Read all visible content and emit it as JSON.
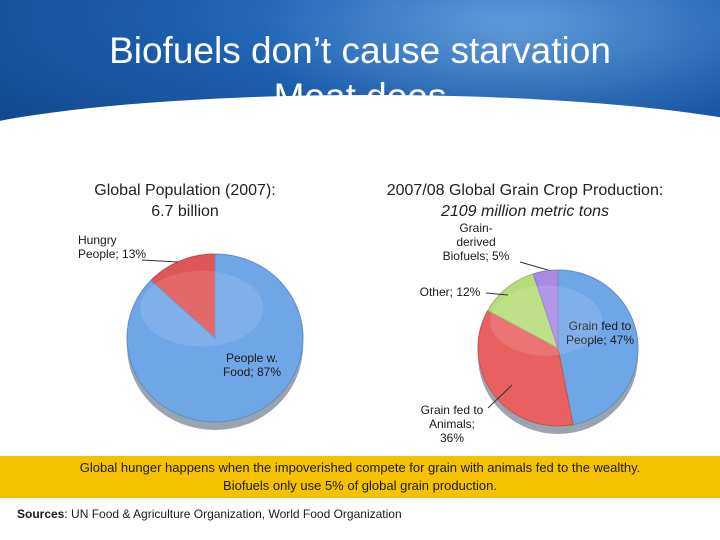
{
  "slide": {
    "title_line1": "Biofuels don’t cause starvation",
    "title_line2": "Meat does",
    "banner_line1": "Global hunger happens when the impoverished compete for grain with animals fed to the wealthy.",
    "banner_line2": "Biofuels only use 5% of global grain production.",
    "sources_label": "Sources",
    "sources_text": ": UN Food & Agriculture Organization, World Food Organization"
  },
  "colors": {
    "header_blue": "#1d5fae",
    "banner_yellow": "#f6c200"
  },
  "chart_data": [
    {
      "type": "pie",
      "title_line1": "Global Population (2007):",
      "title_line2": "6.7 billion",
      "slices": [
        {
          "name": "Hungry People",
          "value": 13,
          "color": "#e05555",
          "label_lines": [
            "Hungry",
            "People; 13%"
          ]
        },
        {
          "name": "People w. Food",
          "value": 87,
          "color": "#6fa6e6",
          "label_lines": [
            "People w.",
            "Food; 87%"
          ]
        }
      ]
    },
    {
      "type": "pie",
      "title_line1": "2007/08 Global Grain Crop Production:",
      "title_line2": "2109 million metric tons",
      "slices": [
        {
          "name": "Grain fed to People",
          "value": 47,
          "color": "#6fa6e6",
          "label_lines": [
            "Grain fed to",
            "People; 47%"
          ]
        },
        {
          "name": "Grain fed to Animals",
          "value": 36,
          "color": "#e86060",
          "label_lines": [
            "Grain fed to",
            "Animals;",
            "36%"
          ]
        },
        {
          "name": "Other",
          "value": 12,
          "color": "#b4dc78",
          "label_lines": [
            "Other; 12%"
          ]
        },
        {
          "name": "Grain-derived Biofuels",
          "value": 5,
          "color": "#a88ae6",
          "label_lines": [
            "Grain-",
            "derived",
            "Biofuels; 5%"
          ]
        }
      ]
    }
  ]
}
